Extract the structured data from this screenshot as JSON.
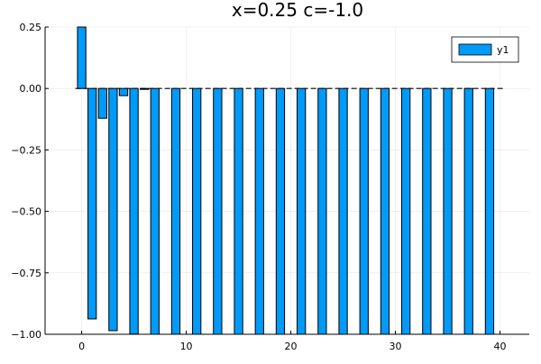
{
  "chart_data": {
    "type": "bar",
    "title": "x=0.25 c=-1.0",
    "xlabel": "",
    "ylabel": "",
    "xlim": [
      -3.5,
      42.8
    ],
    "ylim": [
      -1.0,
      0.25
    ],
    "xticks": [
      0,
      10,
      20,
      30,
      40
    ],
    "yticks": [
      0.25,
      0.0,
      -0.25,
      -0.5,
      -0.75,
      -1.0
    ],
    "ytick_labels": [
      "0.25",
      "0.00",
      "−0.25",
      "−0.50",
      "−0.75",
      "−1.00"
    ],
    "grid": true,
    "legend_position": "top-right",
    "bar_color": "#009af9",
    "bar_edge_color": "#000000",
    "baseline_dashed_to": 40.5,
    "series": [
      {
        "name": "y1",
        "x": [
          0,
          1,
          2,
          3,
          4,
          5,
          6,
          7,
          9,
          11,
          13,
          15,
          17,
          19,
          21,
          23,
          25,
          27,
          29,
          31,
          33,
          35,
          37,
          39
        ],
        "values": [
          0.25,
          -0.9375,
          -0.1211,
          -0.9853,
          -0.0292,
          -0.9991,
          -0.0018,
          -1.0,
          -1.0,
          -1.0,
          -1.0,
          -1.0,
          -1.0,
          -1.0,
          -1.0,
          -1.0,
          -1.0,
          -1.0,
          -1.0,
          -1.0,
          -1.0,
          -1.0,
          -1.0,
          -1.0
        ]
      }
    ]
  }
}
